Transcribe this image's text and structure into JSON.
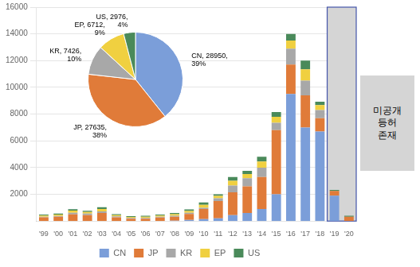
{
  "chart_data": [
    {
      "type": "bar",
      "stacked": true,
      "categories": [
        "'99",
        "'00",
        "'01",
        "'02",
        "'03",
        "'04",
        "'05",
        "'06",
        "'07",
        "'08",
        "'09",
        "'10",
        "'11",
        "'12",
        "'13",
        "'14",
        "'15",
        "'16",
        "'17",
        "'18",
        "'19",
        "'20"
      ],
      "series": [
        {
          "name": "CN",
          "color": "#7B9ED9",
          "values": [
            0,
            0,
            0,
            0,
            0,
            0,
            0,
            0,
            0,
            30,
            80,
            150,
            200,
            450,
            600,
            900,
            2000,
            9500,
            7000,
            6700,
            1900,
            0
          ]
        },
        {
          "name": "JP",
          "color": "#E07B39",
          "values": [
            280,
            320,
            500,
            450,
            600,
            280,
            180,
            180,
            260,
            300,
            450,
            750,
            1300,
            1700,
            2000,
            2400,
            4800,
            2200,
            2400,
            1000,
            350,
            320
          ]
        },
        {
          "name": "KR",
          "color": "#A8A8A8",
          "values": [
            50,
            60,
            120,
            110,
            120,
            70,
            55,
            55,
            60,
            70,
            90,
            90,
            200,
            500,
            600,
            700,
            550,
            1200,
            1100,
            600,
            0,
            0
          ]
        },
        {
          "name": "EP",
          "color": "#F0D040",
          "values": [
            80,
            100,
            160,
            120,
            180,
            90,
            80,
            90,
            100,
            120,
            140,
            220,
            180,
            370,
            320,
            450,
            450,
            600,
            850,
            370,
            0,
            0
          ]
        },
        {
          "name": "US",
          "color": "#4A8A5A",
          "values": [
            70,
            75,
            110,
            90,
            130,
            70,
            60,
            70,
            70,
            90,
            110,
            180,
            130,
            270,
            230,
            360,
            350,
            500,
            650,
            250,
            80,
            80
          ]
        }
      ],
      "ylim": [
        0,
        16000
      ],
      "yticks": [
        2000,
        4000,
        6000,
        8000,
        10000,
        12000,
        14000,
        16000
      ],
      "grid": true,
      "legend": "bottom",
      "annotation": {
        "text": "미공개\n등허\n존재",
        "categories": [
          "'19",
          "'20"
        ]
      }
    },
    {
      "type": "pie",
      "categories": [
        "CN",
        "JP",
        "KR",
        "EP",
        "US"
      ],
      "values": [
        28950,
        27635,
        7426,
        6712,
        2976
      ],
      "colors": [
        "#7B9ED9",
        "#E07B39",
        "#A8A8A8",
        "#F0D040",
        "#4A8A5A"
      ],
      "data_labels": true,
      "value_labels": [
        "CN, 28950,\n39%",
        "JP, 27635,\n38%",
        "KR, 7426,\n10%",
        "EP, 6712,\n9%",
        "US, 2976,\n4%"
      ]
    }
  ]
}
